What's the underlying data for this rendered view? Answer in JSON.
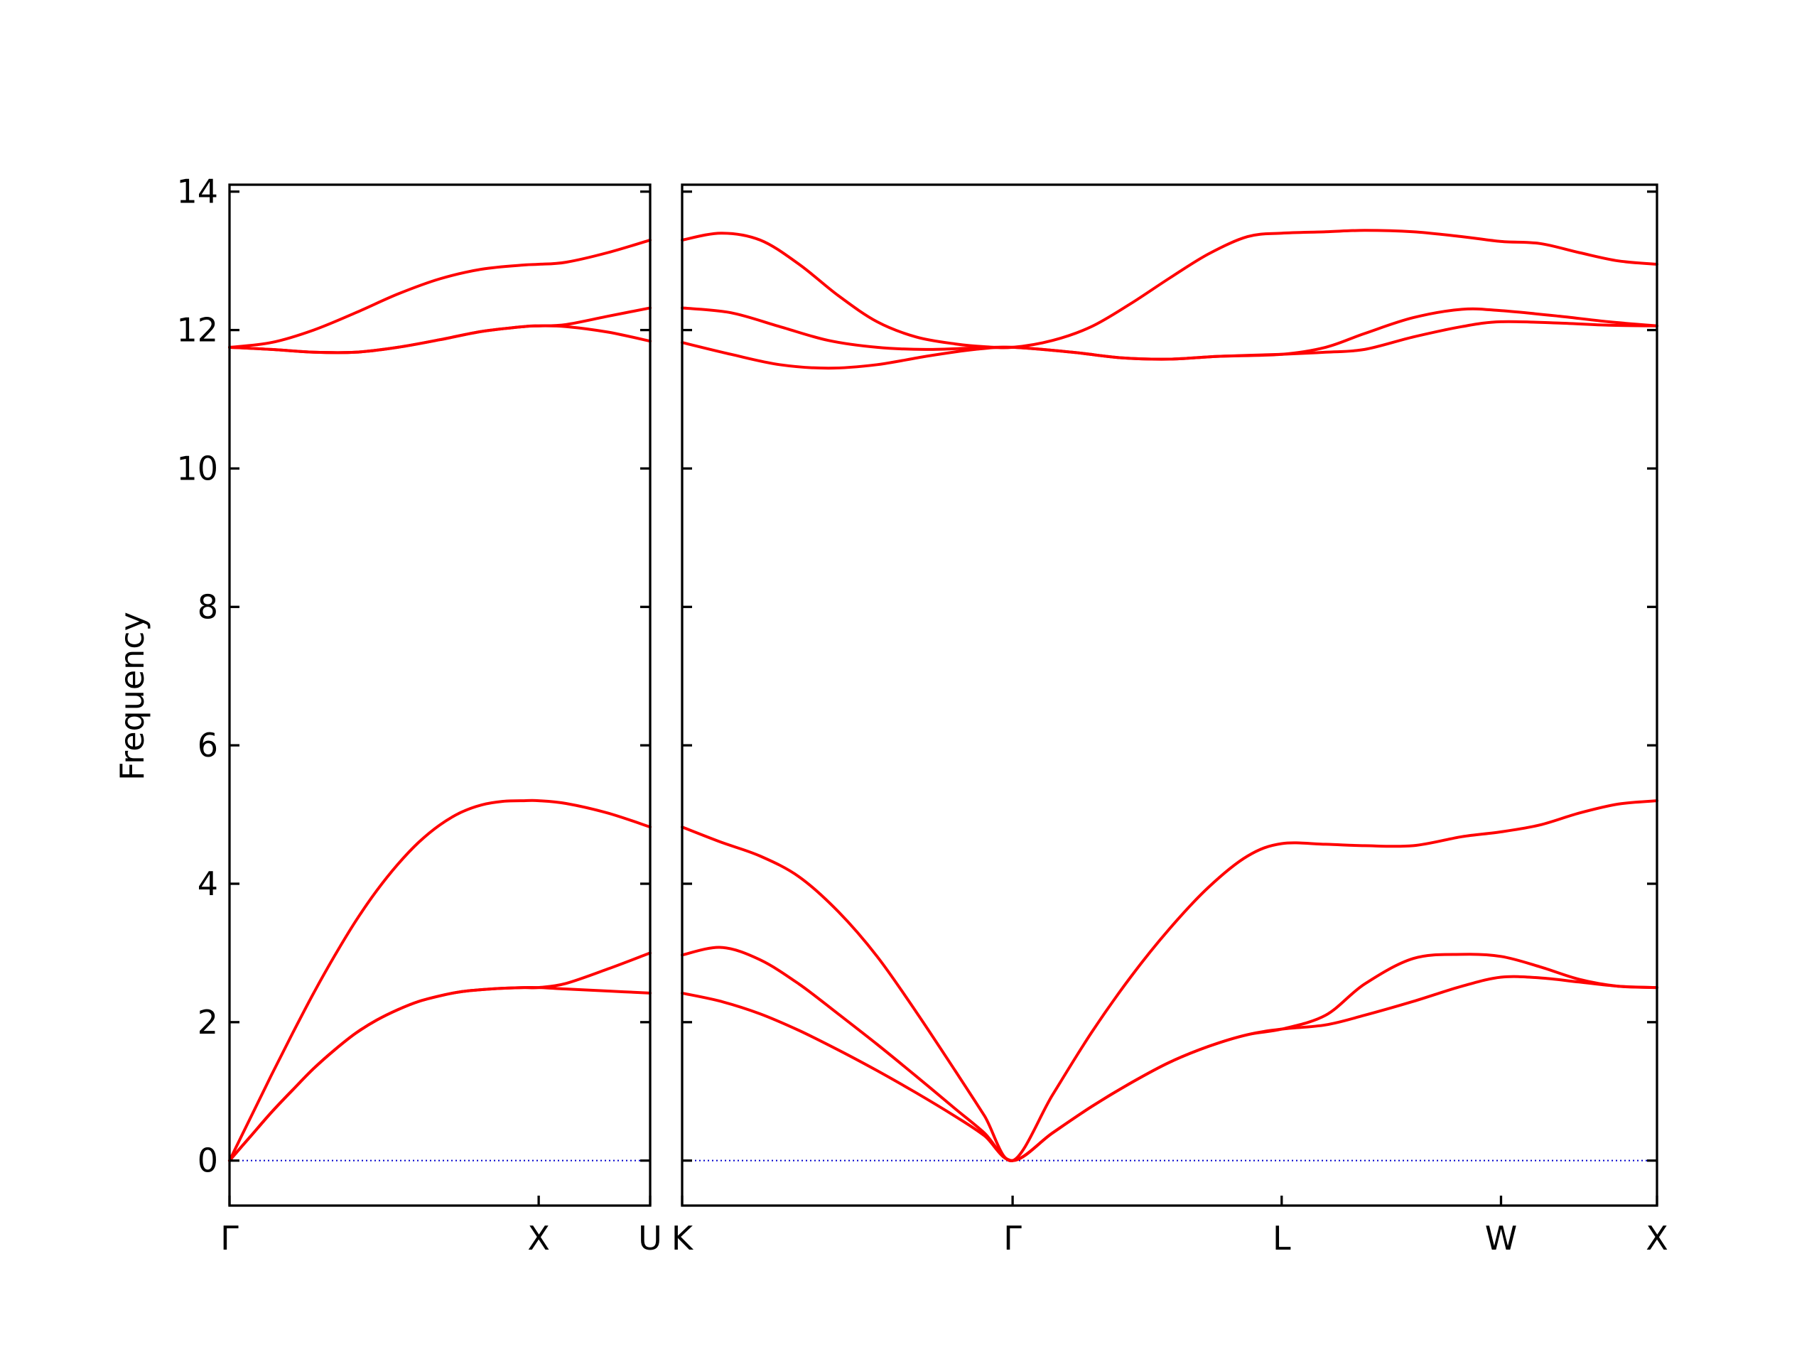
{
  "chart_data": {
    "type": "line",
    "ylabel": "Frequency",
    "ylim": [
      -0.65,
      14.1
    ],
    "yticks": [
      0,
      2,
      4,
      6,
      8,
      10,
      12,
      14
    ],
    "line_color": "#ff0000",
    "zero_line_color": "#0000cc",
    "grid": false,
    "legend": "none",
    "panels": [
      {
        "xlim": [
          0,
          1
        ],
        "xticks": [
          {
            "x": 0,
            "label": "Γ"
          },
          {
            "x": 0.735,
            "label": "X"
          },
          {
            "x": 1,
            "label": "U"
          }
        ],
        "series": [
          {
            "x": [
              0,
              0.05,
              0.1,
              0.15,
              0.2,
              0.25,
              0.3,
              0.35,
              0.4,
              0.45,
              0.5,
              0.55,
              0.6,
              0.65,
              0.7,
              0.735,
              0.8,
              0.9,
              1.0
            ],
            "values": [
              0,
              0.35,
              0.7,
              1.02,
              1.33,
              1.6,
              1.84,
              2.03,
              2.18,
              2.3,
              2.38,
              2.44,
              2.47,
              2.49,
              2.5,
              2.5,
              2.48,
              2.45,
              2.42
            ]
          },
          {
            "x": [
              0,
              0.05,
              0.1,
              0.15,
              0.2,
              0.25,
              0.3,
              0.35,
              0.4,
              0.45,
              0.5,
              0.55,
              0.6,
              0.65,
              0.7,
              0.735,
              0.8,
              0.9,
              1.0
            ],
            "values": [
              0,
              0.35,
              0.7,
              1.02,
              1.33,
              1.6,
              1.84,
              2.03,
              2.18,
              2.3,
              2.38,
              2.44,
              2.47,
              2.49,
              2.5,
              2.5,
              2.56,
              2.77,
              3.0
            ]
          },
          {
            "x": [
              0,
              0.05,
              0.1,
              0.15,
              0.2,
              0.25,
              0.3,
              0.35,
              0.4,
              0.45,
              0.5,
              0.55,
              0.6,
              0.65,
              0.7,
              0.735,
              0.8,
              0.9,
              1.0
            ],
            "values": [
              0,
              0.62,
              1.24,
              1.84,
              2.42,
              2.96,
              3.46,
              3.9,
              4.28,
              4.6,
              4.85,
              5.03,
              5.14,
              5.19,
              5.2,
              5.2,
              5.16,
              5.02,
              4.82
            ]
          },
          {
            "x": [
              0,
              0.1,
              0.2,
              0.3,
              0.4,
              0.5,
              0.6,
              0.7,
              0.735,
              0.8,
              0.9,
              1.0
            ],
            "values": [
              11.75,
              11.72,
              11.68,
              11.68,
              11.75,
              11.86,
              11.98,
              12.05,
              12.06,
              12.05,
              11.97,
              11.84
            ]
          },
          {
            "x": [
              0,
              0.1,
              0.2,
              0.3,
              0.4,
              0.5,
              0.6,
              0.7,
              0.735,
              0.8,
              0.9,
              1.0
            ],
            "values": [
              11.75,
              11.72,
              11.68,
              11.68,
              11.75,
              11.86,
              11.98,
              12.05,
              12.06,
              12.08,
              12.2,
              12.32
            ]
          },
          {
            "x": [
              0,
              0.1,
              0.2,
              0.3,
              0.4,
              0.5,
              0.6,
              0.7,
              0.735,
              0.8,
              0.9,
              1.0
            ],
            "values": [
              11.75,
              11.82,
              12.0,
              12.25,
              12.52,
              12.74,
              12.88,
              12.94,
              12.95,
              12.98,
              13.12,
              13.3
            ]
          }
        ]
      },
      {
        "xlim": [
          0,
          1
        ],
        "xticks": [
          {
            "x": 0,
            "label": "K"
          },
          {
            "x": 0.339,
            "label": "Γ"
          },
          {
            "x": 0.615,
            "label": "L"
          },
          {
            "x": 0.84,
            "label": "W"
          },
          {
            "x": 1,
            "label": "X"
          }
        ],
        "series": [
          {
            "x": [
              0,
              0.04,
              0.08,
              0.12,
              0.16,
              0.2,
              0.24,
              0.28,
              0.31,
              0.339,
              0.38,
              0.42,
              0.46,
              0.5,
              0.54,
              0.58,
              0.615,
              0.66,
              0.7,
              0.75,
              0.8,
              0.84,
              0.88,
              0.92,
              0.96,
              1.0
            ],
            "values": [
              2.42,
              2.3,
              2.12,
              1.88,
              1.6,
              1.3,
              0.98,
              0.64,
              0.36,
              0,
              0.4,
              0.78,
              1.12,
              1.42,
              1.65,
              1.82,
              1.9,
              1.96,
              2.1,
              2.3,
              2.52,
              2.65,
              2.64,
              2.58,
              2.52,
              2.5
            ]
          },
          {
            "x": [
              0,
              0.04,
              0.08,
              0.12,
              0.16,
              0.2,
              0.24,
              0.28,
              0.31,
              0.339,
              0.38,
              0.42,
              0.46,
              0.5,
              0.54,
              0.58,
              0.615,
              0.66,
              0.7,
              0.75,
              0.8,
              0.84,
              0.88,
              0.92,
              0.96,
              1.0
            ],
            "values": [
              2.97,
              3.08,
              2.9,
              2.55,
              2.12,
              1.68,
              1.22,
              0.75,
              0.4,
              0,
              0.4,
              0.78,
              1.12,
              1.42,
              1.65,
              1.82,
              1.9,
              2.1,
              2.55,
              2.92,
              2.98,
              2.95,
              2.8,
              2.62,
              2.52,
              2.5
            ]
          },
          {
            "x": [
              0,
              0.04,
              0.08,
              0.12,
              0.16,
              0.2,
              0.24,
              0.28,
              0.31,
              0.339,
              0.38,
              0.42,
              0.46,
              0.5,
              0.54,
              0.58,
              0.615,
              0.66,
              0.7,
              0.75,
              0.8,
              0.84,
              0.88,
              0.92,
              0.96,
              1.0
            ],
            "values": [
              4.82,
              4.6,
              4.4,
              4.1,
              3.6,
              2.95,
              2.15,
              1.3,
              0.65,
              0,
              0.95,
              1.85,
              2.65,
              3.35,
              3.95,
              4.4,
              4.58,
              4.57,
              4.55,
              4.55,
              4.68,
              4.75,
              4.85,
              5.02,
              5.15,
              5.2
            ]
          },
          {
            "x": [
              0,
              0.05,
              0.1,
              0.15,
              0.2,
              0.25,
              0.3,
              0.339,
              0.4,
              0.45,
              0.5,
              0.55,
              0.615,
              0.66,
              0.7,
              0.75,
              0.8,
              0.84,
              0.9,
              0.95,
              1.0
            ],
            "values": [
              11.82,
              11.65,
              11.5,
              11.45,
              11.5,
              11.62,
              11.72,
              11.75,
              11.68,
              11.6,
              11.58,
              11.62,
              11.65,
              11.68,
              11.72,
              11.9,
              12.05,
              12.12,
              12.1,
              12.07,
              12.06
            ]
          },
          {
            "x": [
              0,
              0.05,
              0.1,
              0.15,
              0.2,
              0.25,
              0.3,
              0.339,
              0.4,
              0.45,
              0.5,
              0.55,
              0.615,
              0.66,
              0.7,
              0.75,
              0.8,
              0.84,
              0.9,
              0.95,
              1.0
            ],
            "values": [
              12.32,
              12.25,
              12.05,
              11.85,
              11.75,
              11.72,
              11.74,
              11.75,
              11.68,
              11.6,
              11.58,
              11.62,
              11.65,
              11.75,
              11.95,
              12.18,
              12.3,
              12.28,
              12.2,
              12.12,
              12.06
            ]
          },
          {
            "x": [
              0,
              0.04,
              0.08,
              0.12,
              0.16,
              0.2,
              0.24,
              0.28,
              0.31,
              0.339,
              0.38,
              0.42,
              0.46,
              0.5,
              0.54,
              0.58,
              0.615,
              0.66,
              0.7,
              0.75,
              0.8,
              0.84,
              0.88,
              0.92,
              0.96,
              1.0
            ],
            "values": [
              13.3,
              13.4,
              13.3,
              12.95,
              12.5,
              12.12,
              11.9,
              11.8,
              11.76,
              11.75,
              11.85,
              12.05,
              12.38,
              12.75,
              13.1,
              13.35,
              13.4,
              13.42,
              13.44,
              13.42,
              13.35,
              13.28,
              13.25,
              13.12,
              13.0,
              12.95
            ]
          }
        ]
      }
    ]
  }
}
